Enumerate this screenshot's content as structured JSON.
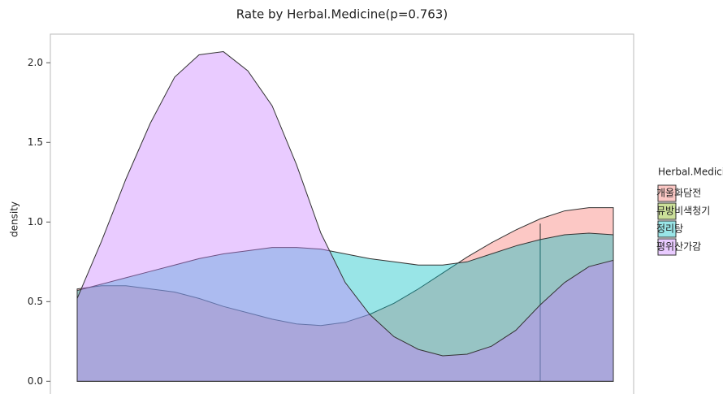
{
  "chart_data": {
    "type": "density",
    "title": "Rate by Herbal.Medicine(p=0.763)",
    "y_label": "density",
    "legend_title": "Herbal.Medicine",
    "legend_position": "right",
    "categories": [
      null,
      null,
      null,
      null,
      null,
      null,
      null,
      null,
      null,
      null,
      null,
      null,
      null,
      null,
      null,
      null,
      null,
      null,
      null,
      null,
      null,
      null,
      null
    ],
    "ylim": [
      -0.08,
      2.18
    ],
    "yticks": [
      {
        "value": 0,
        "label": "0.0"
      },
      0.5,
      {
        "value": 1,
        "label": "1.0"
      },
      1.5,
      {
        "value": 2,
        "label": "2.0"
      }
    ],
    "series": [
      {
        "name": "개울화담전",
        "color": "#f8766d",
        "values": [
          0.58,
          0.6,
          0.6,
          0.58,
          0.56,
          0.52,
          0.47,
          0.43,
          0.39,
          0.36,
          0.35,
          0.37,
          0.42,
          0.49,
          0.58,
          0.68,
          0.78,
          0.87,
          0.95,
          1.02,
          1.07,
          1.09,
          1.09
        ]
      },
      {
        "name": "뮤방비색청기",
        "color": "#7cae00",
        "values": [
          null,
          null,
          null,
          null,
          null,
          null,
          null,
          null,
          null,
          null,
          null,
          null,
          null,
          null,
          null,
          null,
          null,
          null,
          null,
          0.99,
          null,
          null,
          null
        ]
      },
      {
        "name": "정리탕",
        "color": "#00bfc4",
        "values": [
          0.57,
          0.61,
          0.65,
          0.69,
          0.73,
          0.77,
          0.8,
          0.82,
          0.84,
          0.84,
          0.83,
          0.8,
          0.77,
          0.75,
          0.73,
          0.73,
          0.75,
          0.8,
          0.85,
          0.89,
          0.92,
          0.93,
          0.92
        ]
      },
      {
        "name": "평위산가감",
        "color": "#c77cff",
        "values": [
          0.52,
          0.88,
          1.27,
          1.62,
          1.91,
          2.05,
          2.07,
          1.95,
          1.73,
          1.36,
          0.93,
          0.62,
          0.42,
          0.28,
          0.2,
          0.16,
          0.17,
          0.22,
          0.32,
          0.48,
          0.62,
          0.72,
          0.76
        ]
      }
    ]
  }
}
